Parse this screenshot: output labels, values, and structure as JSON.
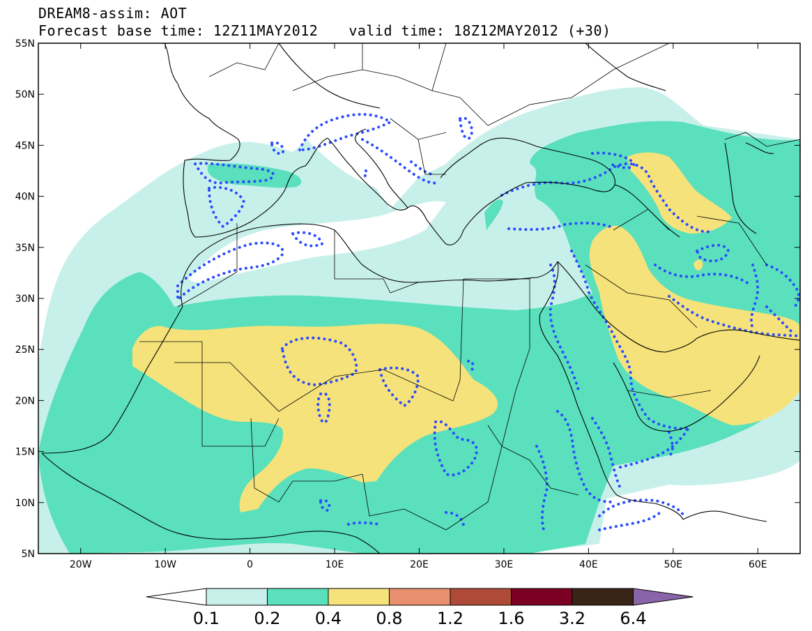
{
  "header": {
    "line1": "DREAM8-assim: AOT",
    "base_time": "Forecast base time: 12Z11MAY2012",
    "valid_time": "valid time: 18Z12MAY2012 (+30)"
  },
  "axes": {
    "lat_labels": [
      "55N",
      "50N",
      "45N",
      "40N",
      "35N",
      "30N",
      "25N",
      "20N",
      "15N",
      "10N",
      "5N"
    ],
    "lon_labels": [
      "20W",
      "10W",
      "0",
      "10E",
      "20E",
      "30E",
      "40E",
      "50E",
      "60E"
    ]
  },
  "colorbar": {
    "labels": [
      "0.1",
      "0.2",
      "0.4",
      "0.8",
      "1.2",
      "1.6",
      "3.2",
      "6.4"
    ],
    "colors": [
      "#ffffff",
      "#c8f0ea",
      "#5ae0bc",
      "#f5e27a",
      "#e89070",
      "#b04a38",
      "#7a0024",
      "#3a2418",
      "#8a64a8"
    ]
  },
  "chart_data": {
    "type": "heatmap",
    "title": "DREAM8-assim: AOT",
    "variable": "AOT",
    "lon_range": [
      -25,
      65
    ],
    "lat_range": [
      5,
      55
    ],
    "contour_levels": [
      0.1,
      0.2,
      0.4,
      0.8,
      1.2,
      1.6,
      3.2,
      6.4
    ],
    "colors": {
      "lt_0.1": "#ffffff",
      "0.1-0.2": "#c8f0ea",
      "0.2-0.4": "#5ae0bc",
      "0.4-0.8": "#f5e27a",
      "0.8-1.2": "#e89070",
      "1.2-1.6": "#b04a38",
      "1.6-3.2": "#7a0024",
      "3.2-6.4": "#3a2418",
      "gt_6.4": "#8a64a8"
    },
    "overlay": "blue dotted contours"
  }
}
